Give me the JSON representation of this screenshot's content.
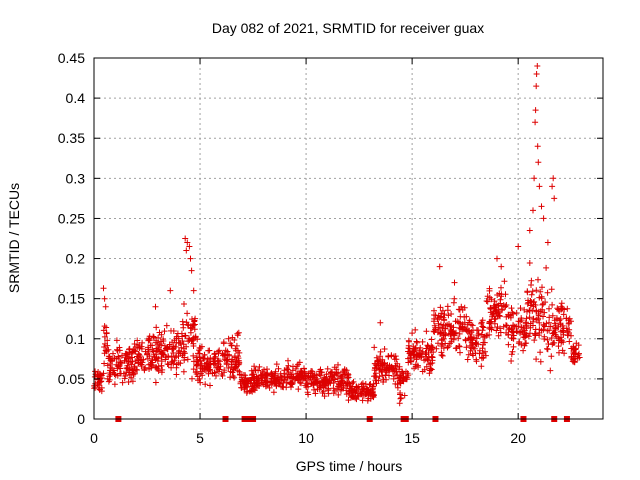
{
  "chart_data": {
    "type": "scatter",
    "title": "Day 082 of 2021, SRMTID for receiver guax",
    "xlabel": "GPS time / hours",
    "ylabel": "SRMTID / TECUs",
    "xlim": [
      0,
      24
    ],
    "ylim": [
      0,
      0.45
    ],
    "grid": true,
    "marker": "+",
    "x_ticks": [
      "0",
      "5",
      "10",
      "15",
      "20"
    ],
    "x_tick_values": [
      0,
      5,
      10,
      15,
      20
    ],
    "y_ticks": [
      "0",
      "0.05",
      "0.1",
      "0.15",
      "0.2",
      "0.25",
      "0.3",
      "0.35",
      "0.4",
      "0.45"
    ],
    "y_tick_values": [
      0,
      0.05,
      0.1,
      0.15,
      0.2,
      0.25,
      0.3,
      0.35,
      0.4,
      0.45
    ],
    "colors": {
      "series": "#dd0000",
      "grid": "#a0a0a0",
      "axis": "#000000"
    },
    "series": [
      {
        "name": "SRMTID",
        "segments": [
          {
            "t_start": 0.0,
            "t_end": 0.45,
            "base": 0.05,
            "spread": 0.015
          },
          {
            "t_start": 0.45,
            "t_end": 0.65,
            "base": 0.1,
            "spread": 0.035
          },
          {
            "t_start": 0.65,
            "t_end": 1.0,
            "base": 0.065,
            "spread": 0.02
          },
          {
            "t_start": 1.0,
            "t_end": 2.0,
            "base": 0.07,
            "spread": 0.025
          },
          {
            "t_start": 2.0,
            "t_end": 3.0,
            "base": 0.08,
            "spread": 0.028
          },
          {
            "t_start": 3.0,
            "t_end": 4.1,
            "base": 0.085,
            "spread": 0.03
          },
          {
            "t_start": 4.1,
            "t_end": 4.8,
            "base": 0.1,
            "spread": 0.04
          },
          {
            "t_start": 4.8,
            "t_end": 6.0,
            "base": 0.07,
            "spread": 0.022
          },
          {
            "t_start": 6.0,
            "t_end": 6.9,
            "base": 0.075,
            "spread": 0.025
          },
          {
            "t_start": 6.9,
            "t_end": 7.4,
            "base": 0.045,
            "spread": 0.012
          },
          {
            "t_start": 7.4,
            "t_end": 9.0,
            "base": 0.05,
            "spread": 0.015
          },
          {
            "t_start": 9.0,
            "t_end": 10.0,
            "base": 0.055,
            "spread": 0.018
          },
          {
            "t_start": 10.0,
            "t_end": 11.0,
            "base": 0.045,
            "spread": 0.016
          },
          {
            "t_start": 11.0,
            "t_end": 12.0,
            "base": 0.048,
            "spread": 0.02
          },
          {
            "t_start": 12.0,
            "t_end": 13.2,
            "base": 0.035,
            "spread": 0.012
          },
          {
            "t_start": 13.2,
            "t_end": 14.3,
            "base": 0.065,
            "spread": 0.022
          },
          {
            "t_start": 14.3,
            "t_end": 14.8,
            "base": 0.045,
            "spread": 0.02
          },
          {
            "t_start": 14.8,
            "t_end": 16.0,
            "base": 0.08,
            "spread": 0.022
          },
          {
            "t_start": 16.0,
            "t_end": 17.5,
            "base": 0.115,
            "spread": 0.03
          },
          {
            "t_start": 17.5,
            "t_end": 18.5,
            "base": 0.1,
            "spread": 0.03
          },
          {
            "t_start": 18.5,
            "t_end": 19.5,
            "base": 0.13,
            "spread": 0.035
          },
          {
            "t_start": 19.5,
            "t_end": 20.4,
            "base": 0.11,
            "spread": 0.03
          },
          {
            "t_start": 20.4,
            "t_end": 20.7,
            "base": 0.14,
            "spread": 0.04
          },
          {
            "t_start": 20.7,
            "t_end": 21.6,
            "base": 0.12,
            "spread": 0.05
          },
          {
            "t_start": 21.6,
            "t_end": 22.5,
            "base": 0.115,
            "spread": 0.03
          },
          {
            "t_start": 22.5,
            "t_end": 22.9,
            "base": 0.08,
            "spread": 0.015
          }
        ],
        "spikes": [
          {
            "t": 0.45,
            "y": 0.163
          },
          {
            "t": 0.5,
            "y": 0.15
          },
          {
            "t": 0.55,
            "y": 0.14
          },
          {
            "t": 2.9,
            "y": 0.14
          },
          {
            "t": 3.6,
            "y": 0.16
          },
          {
            "t": 4.3,
            "y": 0.225
          },
          {
            "t": 4.35,
            "y": 0.21
          },
          {
            "t": 4.4,
            "y": 0.22
          },
          {
            "t": 4.5,
            "y": 0.215
          },
          {
            "t": 4.55,
            "y": 0.2
          },
          {
            "t": 4.6,
            "y": 0.185
          },
          {
            "t": 4.7,
            "y": 0.16
          },
          {
            "t": 13.5,
            "y": 0.12
          },
          {
            "t": 16.3,
            "y": 0.19
          },
          {
            "t": 17.0,
            "y": 0.17
          },
          {
            "t": 19.0,
            "y": 0.2
          },
          {
            "t": 19.2,
            "y": 0.19
          },
          {
            "t": 20.0,
            "y": 0.215
          },
          {
            "t": 20.55,
            "y": 0.235
          },
          {
            "t": 20.7,
            "y": 0.26
          },
          {
            "t": 20.75,
            "y": 0.3
          },
          {
            "t": 20.8,
            "y": 0.37
          },
          {
            "t": 20.82,
            "y": 0.385
          },
          {
            "t": 20.85,
            "y": 0.415
          },
          {
            "t": 20.87,
            "y": 0.43
          },
          {
            "t": 20.9,
            "y": 0.44
          },
          {
            "t": 20.92,
            "y": 0.34
          },
          {
            "t": 20.95,
            "y": 0.32
          },
          {
            "t": 21.0,
            "y": 0.29
          },
          {
            "t": 21.1,
            "y": 0.265
          },
          {
            "t": 21.2,
            "y": 0.25
          },
          {
            "t": 21.4,
            "y": 0.22
          },
          {
            "t": 21.6,
            "y": 0.29
          },
          {
            "t": 21.65,
            "y": 0.3
          },
          {
            "t": 21.7,
            "y": 0.275
          }
        ],
        "zeros": [
          1.15,
          6.2,
          7.1,
          7.2,
          7.3,
          7.5,
          13.0,
          14.6,
          14.7,
          16.1,
          20.25,
          21.7,
          22.3
        ]
      }
    ]
  }
}
